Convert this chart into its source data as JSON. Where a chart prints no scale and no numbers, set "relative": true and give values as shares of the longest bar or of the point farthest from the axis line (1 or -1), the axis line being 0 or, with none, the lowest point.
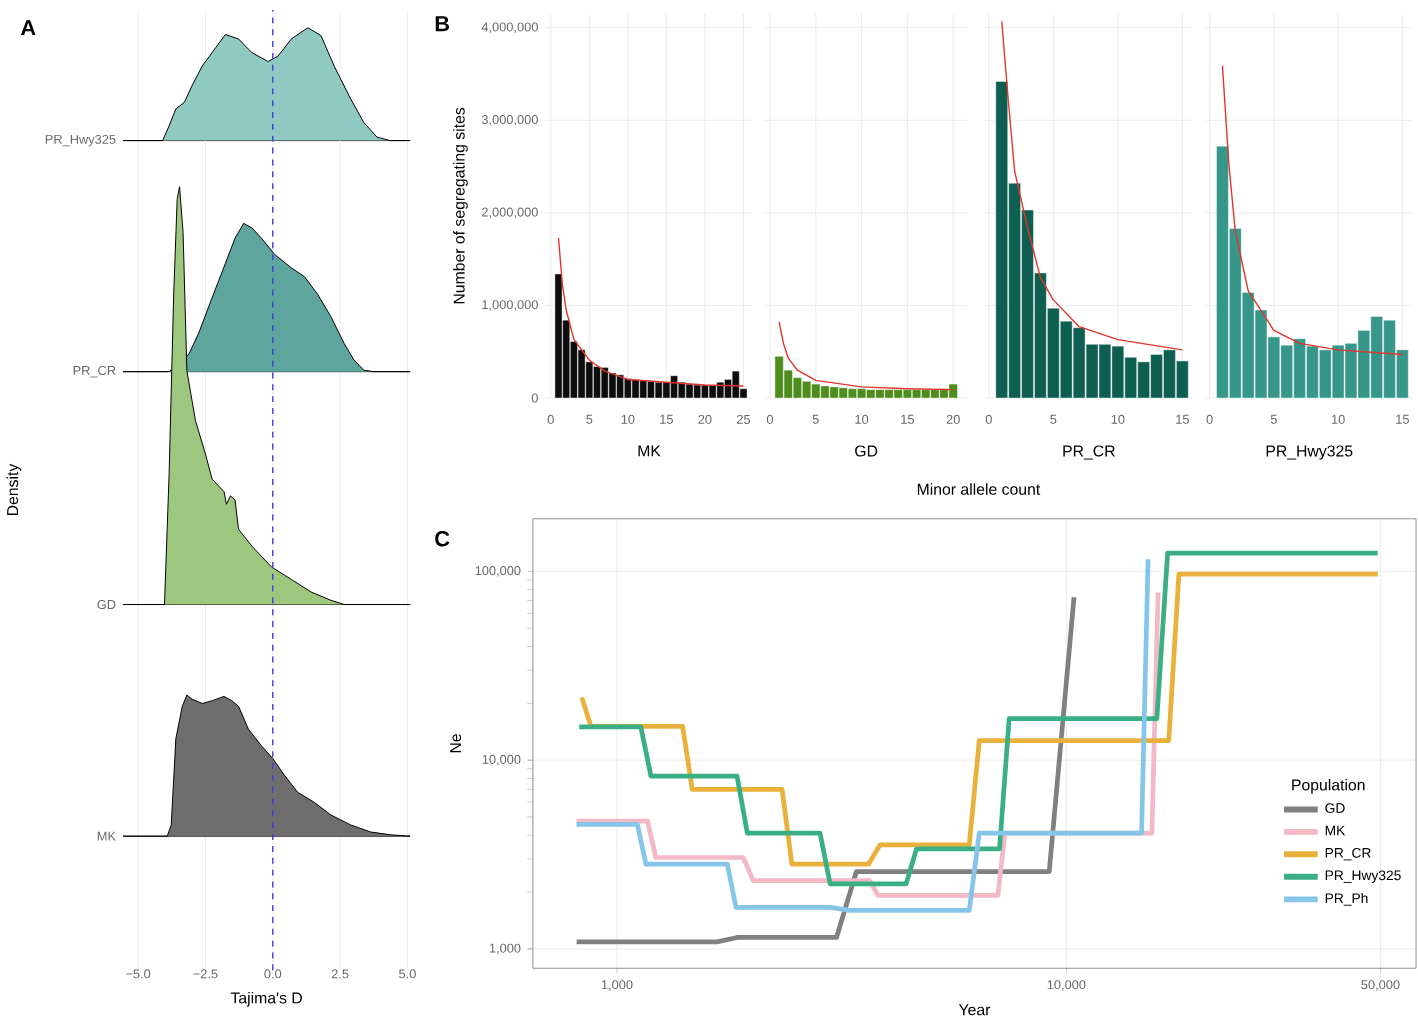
{
  "chart_data": [
    {
      "type": "area",
      "title": "A",
      "relative": true,
      "xlim": [
        -5.56,
        5.1
      ],
      "xticks": [
        -5,
        -2.5,
        0,
        2.5,
        5
      ],
      "grid": "x",
      "tick_labels": false,
      "series": [
        {
          "name": "PR_Hwy325",
          "color": "#8fc9c1",
          "x": [
            -5.56,
            -4.09,
            -3.85,
            -3.6,
            -3.28,
            -2.99,
            -2.62,
            -2.25,
            -1.76,
            -1.27,
            -0.78,
            -0.17,
            0.2,
            0.69,
            1.3,
            1.79,
            2.28,
            2.89,
            3.38,
            3.87,
            4.36,
            5.1
          ],
          "values": [
            0,
            0,
            0.13,
            0.28,
            0.34,
            0.49,
            0.66,
            0.78,
            0.94,
            0.9,
            0.78,
            0.7,
            0.75,
            0.9,
            1.0,
            0.93,
            0.66,
            0.37,
            0.16,
            0.03,
            0,
            0
          ]
        }
      ]
    },
    {
      "type": "area",
      "relative": true,
      "xlim": [
        -5.56,
        5.1
      ],
      "tick_labels": false,
      "series": [
        {
          "name": "PR_CR",
          "color": "#5ea69d",
          "x": [
            -5.56,
            -3.85,
            -3.48,
            -3.11,
            -2.75,
            -2.25,
            -1.76,
            -1.4,
            -1.08,
            -0.78,
            -0.42,
            0.07,
            0.69,
            1.18,
            1.67,
            2.16,
            2.65,
            3.01,
            3.38,
            3.75,
            5.1
          ],
          "values": [
            0,
            0,
            null,
            0.12,
            0.26,
            0.5,
            0.73,
            0.9,
            1.0,
            0.97,
            0.9,
            0.79,
            0.7,
            0.64,
            0.52,
            0.37,
            0.19,
            0.08,
            0.01,
            0,
            0
          ]
        }
      ]
    },
    {
      "type": "area",
      "ylabel": "Density",
      "relative": true,
      "xlim": [
        -5.56,
        5.1
      ],
      "tick_labels": false,
      "series": [
        {
          "name": "GD",
          "color": "#9dc67f",
          "x": [
            -5.56,
            -4.02,
            -3.85,
            -3.68,
            -3.55,
            -3.46,
            -3.33,
            -3.19,
            -2.87,
            -2.5,
            -2.25,
            -1.81,
            -1.72,
            -1.57,
            -1.4,
            -1.27,
            -0.78,
            -0.05,
            0.69,
            1.42,
            2.16,
            2.65,
            5.1
          ],
          "values": [
            0,
            0,
            0.31,
            0.74,
            0.97,
            1.0,
            0.89,
            0.56,
            0.44,
            0.36,
            0.3,
            0.27,
            0.24,
            0.26,
            0.25,
            0.18,
            0.14,
            0.09,
            0.06,
            0.03,
            0.01,
            0,
            0
          ]
        }
      ]
    },
    {
      "type": "area",
      "xlabel": "Tajima's D",
      "relative": true,
      "xlim": [
        -5.56,
        5.1
      ],
      "xticks": [
        {
          "value": -5,
          "label": "−5.0"
        },
        {
          "value": -2.5,
          "label": "−2.5"
        },
        {
          "value": 0,
          "label": "0.0"
        },
        {
          "value": 2.5,
          "label": "2.5"
        },
        {
          "value": 5,
          "label": "5.0"
        }
      ],
      "tick_labels": "x",
      "ref_lines": [
        {
          "axis": "x",
          "value": 0,
          "color": "#3b3bdb",
          "line_style": "dashed"
        }
      ],
      "series": [
        {
          "name": "MK",
          "color": "#6e6e6e",
          "x": [
            -5.56,
            -3.92,
            -3.77,
            -3.6,
            -3.36,
            -3.19,
            -2.99,
            -2.62,
            -2.25,
            -1.81,
            -1.52,
            -1.27,
            -0.91,
            -0.42,
            0.0,
            0.44,
            0.93,
            1.54,
            2.16,
            2.89,
            3.63,
            4.36,
            5.1
          ],
          "values": [
            0,
            0,
            0.08,
            0.69,
            0.92,
            1.0,
            0.97,
            0.94,
            0.96,
            0.99,
            0.96,
            0.92,
            0.76,
            0.64,
            0.55,
            0.43,
            0.31,
            0.24,
            0.15,
            0.08,
            0.03,
            0.01,
            0
          ]
        }
      ]
    },
    {
      "type": "bar",
      "title": "B",
      "xlabel": "MK",
      "ylabel": "Number of segregating sites",
      "annotations": [
        "Minor allele count"
      ],
      "x": [
        1,
        2,
        3,
        4,
        5,
        6,
        7,
        8,
        9,
        10,
        11,
        12,
        13,
        14,
        15,
        16,
        17,
        18,
        19,
        20,
        21,
        22,
        23,
        24,
        25
      ],
      "xlim": [
        -0.7,
        26.2
      ],
      "xticks": [
        0,
        5,
        10,
        15,
        20,
        25
      ],
      "ylim": [
        0,
        4150000
      ],
      "yticks": [
        0,
        {
          "value": 1000000,
          "label": "1,000,000"
        },
        {
          "value": 2000000,
          "label": "2,000,000"
        },
        {
          "value": 3000000,
          "label": "3,000,000"
        },
        {
          "value": 4000000,
          "label": "4,000,000"
        }
      ],
      "grid": true,
      "series": [
        {
          "color": "#0d0d0d",
          "values": [
            1340000,
            840000,
            610000,
            520000,
            390000,
            340000,
            330000,
            270000,
            250000,
            210000,
            200000,
            190000,
            180000,
            170000,
            170000,
            240000,
            170000,
            150000,
            140000,
            140000,
            140000,
            170000,
            200000,
            290000,
            100000
          ]
        },
        {
          "type": "line",
          "color": "#e0342c",
          "x": [
            1,
            1.5,
            2,
            3,
            5,
            7,
            10,
            15,
            20,
            25
          ],
          "values": [
            1730000,
            1230000,
            950000,
            630000,
            410000,
            290000,
            200000,
            170000,
            140000,
            130000
          ]
        }
      ]
    },
    {
      "type": "bar",
      "xlabel": "GD",
      "x": [
        1,
        2,
        3,
        4,
        5,
        6,
        7,
        8,
        9,
        10,
        11,
        12,
        13,
        14,
        15,
        16,
        17,
        18,
        19,
        20
      ],
      "xlim": [
        -0.5,
        21.5
      ],
      "xticks": [
        0,
        5,
        10,
        15,
        20
      ],
      "ylim": [
        0,
        4150000
      ],
      "yticks": [
        {
          "value": 0,
          "label": null
        },
        {
          "value": 1000000,
          "label": null
        },
        {
          "value": 2000000,
          "label": null
        },
        {
          "value": 3000000,
          "label": null
        },
        {
          "value": 4000000,
          "label": null
        }
      ],
      "grid": true,
      "tick_labels": "x",
      "series": [
        {
          "color": "#4e8c1c",
          "values": [
            450000,
            300000,
            220000,
            180000,
            150000,
            130000,
            120000,
            110000,
            100000,
            100000,
            90000,
            90000,
            90000,
            90000,
            90000,
            90000,
            90000,
            90000,
            100000,
            150000
          ]
        },
        {
          "type": "line",
          "color": "#e0342c",
          "x": [
            1,
            1.5,
            2,
            3,
            5,
            10,
            15,
            20
          ],
          "values": [
            820000,
            580000,
            430000,
            300000,
            190000,
            120000,
            100000,
            90000
          ]
        }
      ]
    },
    {
      "type": "bar",
      "xlabel": "PR_CR",
      "x": [
        1,
        2,
        3,
        4,
        5,
        6,
        7,
        8,
        9,
        10,
        11,
        12,
        13,
        14,
        15
      ],
      "xlim": [
        -0.3,
        15.8
      ],
      "xticks": [
        0,
        5,
        10,
        15
      ],
      "ylim": [
        0,
        4150000
      ],
      "yticks": [
        {
          "value": 0,
          "label": null
        },
        {
          "value": 1000000,
          "label": null
        },
        {
          "value": 2000000,
          "label": null
        },
        {
          "value": 3000000,
          "label": null
        },
        {
          "value": 4000000,
          "label": null
        }
      ],
      "grid": true,
      "tick_labels": "x",
      "series": [
        {
          "color": "#0e5f52",
          "values": [
            3420000,
            2320000,
            2030000,
            1350000,
            970000,
            830000,
            760000,
            580000,
            580000,
            560000,
            440000,
            390000,
            470000,
            520000,
            400000
          ]
        },
        {
          "type": "line",
          "color": "#e0342c",
          "x": [
            1,
            1.5,
            2,
            3,
            4,
            5,
            7,
            10,
            15
          ],
          "values": [
            4070000,
            3230000,
            2450000,
            1840000,
            1300000,
            1060000,
            770000,
            630000,
            520000
          ]
        }
      ]
    },
    {
      "type": "bar",
      "xlabel": "PR_Hwy325",
      "x": [
        1,
        2,
        3,
        4,
        5,
        6,
        7,
        8,
        9,
        10,
        11,
        12,
        13,
        14,
        15
      ],
      "xlim": [
        -0.3,
        15.8
      ],
      "xticks": [
        0,
        5,
        10,
        15
      ],
      "ylim": [
        0,
        4150000
      ],
      "yticks": [
        {
          "value": 0,
          "label": null
        },
        {
          "value": 1000000,
          "label": null
        },
        {
          "value": 2000000,
          "label": null
        },
        {
          "value": 3000000,
          "label": null
        },
        {
          "value": 4000000,
          "label": null
        }
      ],
      "grid": true,
      "tick_labels": "x",
      "series": [
        {
          "color": "#36968a",
          "values": [
            2720000,
            1830000,
            1140000,
            950000,
            660000,
            570000,
            640000,
            560000,
            520000,
            570000,
            590000,
            730000,
            880000,
            840000,
            520000
          ]
        },
        {
          "type": "line",
          "color": "#e0342c",
          "x": [
            1,
            1.5,
            2,
            3,
            5,
            7,
            10,
            15
          ],
          "values": [
            3590000,
            2520000,
            1800000,
            1160000,
            730000,
            590000,
            520000,
            470000
          ]
        }
      ]
    },
    {
      "type": "line",
      "title": "C",
      "xlabel": "Year",
      "ylabel": "Ne",
      "log": "xy",
      "xlim": [
        650,
        60000
      ],
      "xticks": [
        {
          "value": 1000,
          "label": "1,000"
        },
        {
          "value": 10000,
          "label": "10,000"
        },
        {
          "value": 50000,
          "label": "50,000"
        }
      ],
      "ylim": [
        790,
        190000
      ],
      "yticks": [
        {
          "value": 1000,
          "label": "1,000"
        },
        {
          "value": 10000,
          "label": "10,000"
        },
        {
          "value": 100000,
          "label": "100,000"
        }
      ],
      "grid": true,
      "legend": "right",
      "legend_title": "Population",
      "series": [
        {
          "name": "GD",
          "color": "#808080",
          "x": [
            813,
            1670,
            1850,
            3080,
            3410,
            9160,
            10400
          ],
          "values": [
            1090,
            1090,
            1150,
            1150,
            2570,
            2570,
            72900
          ]
        },
        {
          "name": "MK",
          "color": "#f2b8c6",
          "x": [
            813,
            1170,
            1220,
            1910,
            2010,
            3650,
            3810,
            7040,
            7300,
            15500,
            16000
          ],
          "values": [
            4750,
            4750,
            3050,
            3050,
            2300,
            2300,
            1920,
            1920,
            4110,
            4110,
            77300
          ]
        },
        {
          "name": "PR_CR",
          "color": "#e9b13c",
          "x": [
            835,
            875,
            1400,
            1470,
            2330,
            2450,
            3630,
            3850,
            6080,
            6400,
            16900,
            17800,
            49300
          ],
          "values": [
            21500,
            15100,
            15100,
            7010,
            7010,
            2810,
            2810,
            3560,
            3560,
            12700,
            12700,
            96800,
            96800
          ]
        },
        {
          "name": "PR_Hwy325",
          "color": "#3aaf85",
          "x": [
            824,
            1130,
            1190,
            1850,
            1950,
            2830,
            2980,
            4400,
            4640,
            7100,
            7460,
            15900,
            16800,
            49300
          ],
          "values": [
            15000,
            15000,
            8240,
            8240,
            4110,
            4110,
            2210,
            2210,
            3390,
            3390,
            16600,
            16600,
            125000,
            125000
          ]
        },
        {
          "name": "PR_Ph",
          "color": "#86c5ea",
          "x": [
            813,
            1110,
            1160,
            1760,
            1840,
            2980,
            3300,
            6080,
            6400,
            14700,
            15200
          ],
          "values": [
            4570,
            4570,
            2810,
            2810,
            1660,
            1660,
            1600,
            1600,
            4110,
            4110,
            116000
          ]
        }
      ]
    }
  ]
}
